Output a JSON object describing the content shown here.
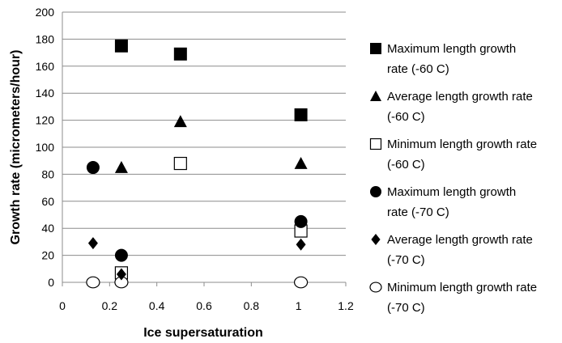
{
  "chart_data": {
    "type": "scatter",
    "title": "",
    "xlabel": "Ice supersaturation",
    "ylabel": "Growth rate (micrometers/hour)",
    "xlim": [
      0,
      1.2
    ],
    "ylim": [
      0,
      200
    ],
    "x_ticks": [
      "0",
      "0.2",
      "0.4",
      "0.6",
      "0.8",
      "1",
      "1.2"
    ],
    "y_ticks": [
      "0",
      "20",
      "40",
      "60",
      "80",
      "100",
      "120",
      "140",
      "160",
      "180",
      "200"
    ],
    "grid": "horizontal",
    "legend_position": "right",
    "series": [
      {
        "name": "Maximum length growth rate (-60 C)",
        "marker": "filled-square",
        "points": [
          {
            "x": 0.25,
            "y": 175
          },
          {
            "x": 0.5,
            "y": 169
          },
          {
            "x": 1.01,
            "y": 124
          }
        ]
      },
      {
        "name": "Average length growth rate (-60 C)",
        "marker": "filled-triangle",
        "points": [
          {
            "x": 0.25,
            "y": 85
          },
          {
            "x": 0.5,
            "y": 119
          },
          {
            "x": 1.01,
            "y": 88
          }
        ]
      },
      {
        "name": "Minimum length growth rate (-60 C)",
        "marker": "open-square",
        "points": [
          {
            "x": 0.25,
            "y": 7
          },
          {
            "x": 0.5,
            "y": 88
          },
          {
            "x": 1.01,
            "y": 38
          }
        ]
      },
      {
        "name": "Maximum length growth rate (-70 C)",
        "marker": "filled-circle",
        "points": [
          {
            "x": 0.13,
            "y": 85
          },
          {
            "x": 0.25,
            "y": 20
          },
          {
            "x": 1.01,
            "y": 45
          }
        ]
      },
      {
        "name": "Average length growth rate (-70 C)",
        "marker": "filled-diamond",
        "points": [
          {
            "x": 0.13,
            "y": 29
          },
          {
            "x": 0.25,
            "y": 6
          },
          {
            "x": 1.01,
            "y": 28
          }
        ]
      },
      {
        "name": "Minimum length growth rate (-70 C)",
        "marker": "open-circle",
        "points": [
          {
            "x": 0.13,
            "y": 0
          },
          {
            "x": 0.25,
            "y": 0
          },
          {
            "x": 1.01,
            "y": 0
          }
        ]
      }
    ],
    "legend_labels": [
      "Maximum length growth\nrate (-60 C)",
      "Average length growth rate\n(-60 C)",
      "Minimum length growth rate\n(-60 C)",
      "Maximum length growth\nrate (-70 C)",
      "Average length growth rate\n(-70 C)",
      "Minimum length growth rate\n(-70 C)"
    ],
    "colors": {
      "marker": "#000000",
      "grid": "#8c8c8c",
      "axis": "#8c8c8c"
    }
  }
}
